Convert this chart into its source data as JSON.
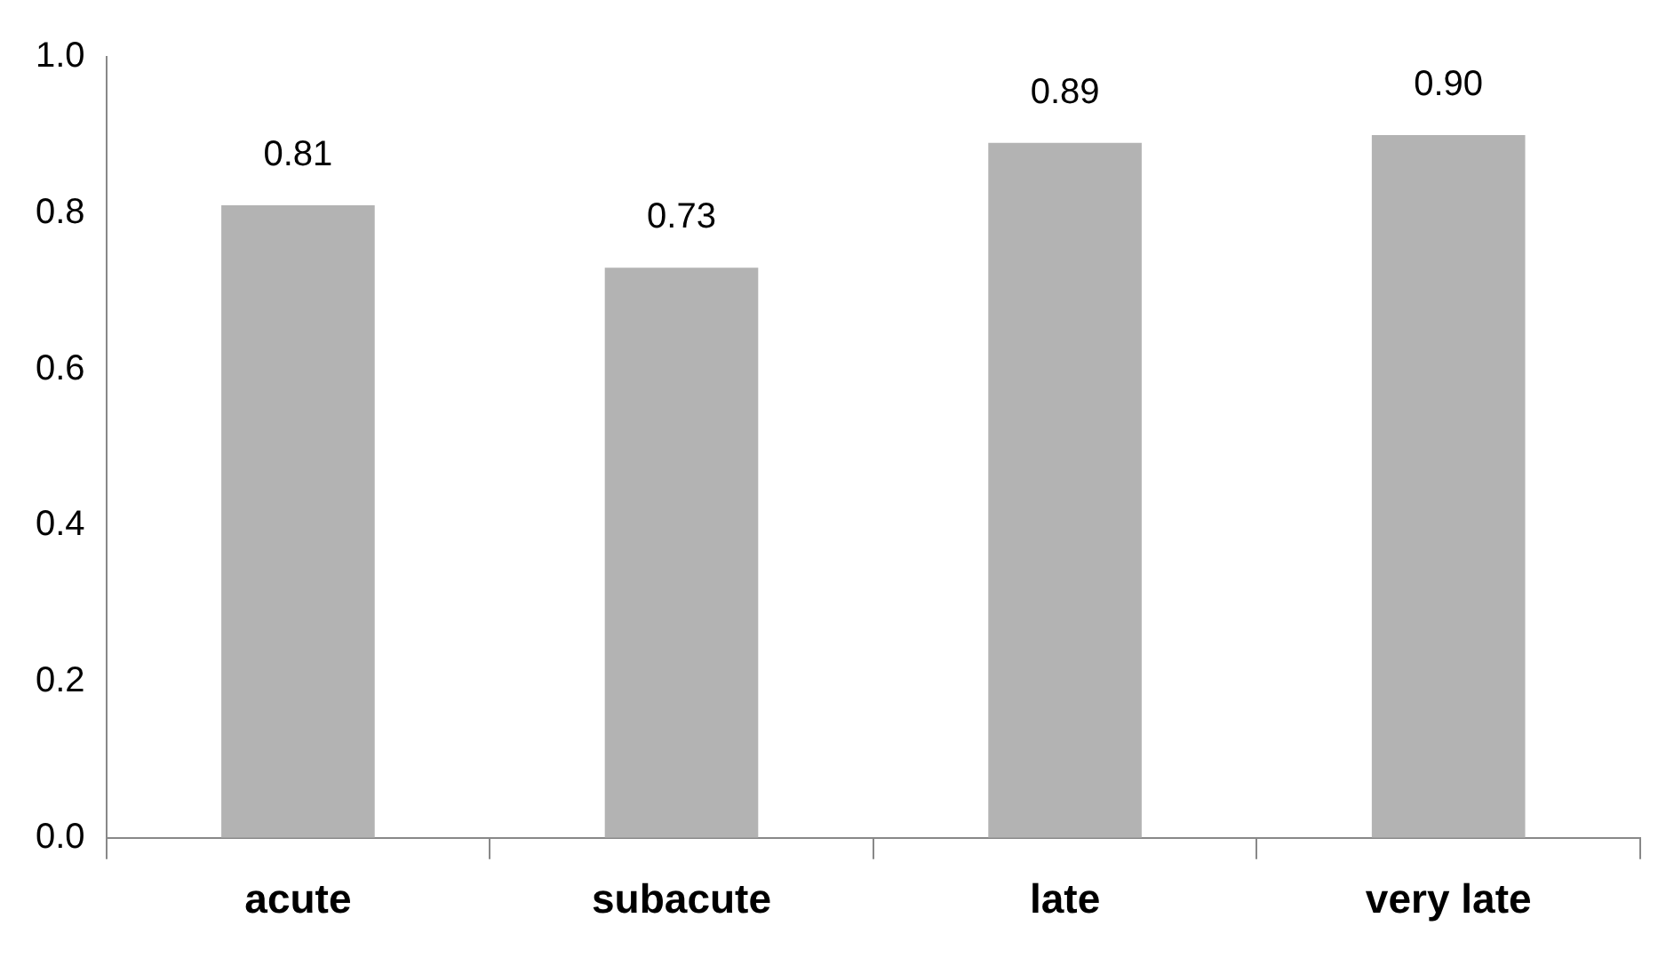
{
  "chart_data": {
    "type": "bar",
    "categories": [
      "acute",
      "subacute",
      "late",
      "very late"
    ],
    "values": [
      0.81,
      0.73,
      0.89,
      0.9
    ],
    "color": "#b3b3b3",
    "value_labels": [
      "0.81",
      "0.73",
      "0.89",
      "0.90"
    ],
    "ylim": [
      0,
      1
    ],
    "yticks": [
      {
        "value": 0,
        "label": "0.0"
      },
      0.2,
      0.4,
      0.6,
      0.8,
      {
        "value": 1,
        "label": "1.0"
      }
    ],
    "grid": false,
    "legend": false
  }
}
